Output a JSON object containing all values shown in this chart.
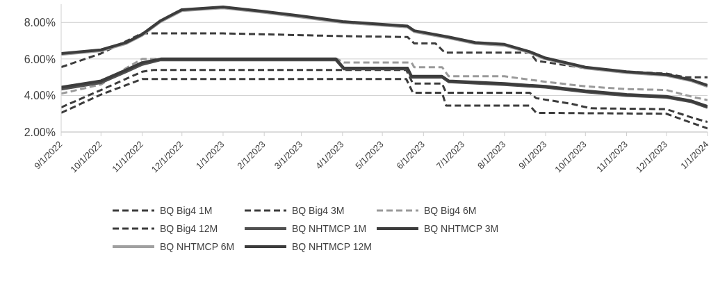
{
  "chart_data": {
    "type": "line",
    "xlim": [
      "2022-09-01",
      "2024-01-01"
    ],
    "xticks": [
      {
        "value": "2022-09-01",
        "label": "9/1/2022"
      },
      {
        "value": "2022-10-01",
        "label": "10/1/2022"
      },
      {
        "value": "2022-11-01",
        "label": "11/1/2022"
      },
      {
        "value": "2022-12-01",
        "label": "12/1/2022"
      },
      {
        "value": "2023-01-01",
        "label": "1/1/2023"
      },
      {
        "value": "2023-02-01",
        "label": "2/1/2023"
      },
      {
        "value": "2023-03-01",
        "label": "3/1/2023"
      },
      {
        "value": "2023-04-01",
        "label": "4/1/2023"
      },
      {
        "value": "2023-05-01",
        "label": "5/1/2023"
      },
      {
        "value": "2023-06-01",
        "label": "6/1/2023"
      },
      {
        "value": "2023-07-01",
        "label": "7/1/2023"
      },
      {
        "value": "2023-08-01",
        "label": "8/1/2023"
      },
      {
        "value": "2023-09-01",
        "label": "9/1/2023"
      },
      {
        "value": "2023-10-01",
        "label": "10/1/2023"
      },
      {
        "value": "2023-11-01",
        "label": "11/1/2023"
      },
      {
        "value": "2023-12-01",
        "label": "12/1/2023"
      },
      {
        "value": "2024-01-01",
        "label": "1/1/2024"
      }
    ],
    "ylim": [
      2,
      9
    ],
    "yticks": [
      {
        "value": 2,
        "label": "2.00%"
      },
      {
        "value": 4,
        "label": "4.00%"
      },
      {
        "value": 6,
        "label": "6.00%"
      },
      {
        "value": 8,
        "label": "8.00%"
      }
    ],
    "grid": "y",
    "legend": "bottom",
    "marker": "none",
    "series": [
      {
        "name": "BQ Big4 1M",
        "color": "#3c3c3c",
        "line_style": "dashed",
        "x": [
          "2022-09-01",
          "2022-10-01",
          "2022-11-01",
          "2023-05-19",
          "2023-05-24",
          "2023-06-15",
          "2023-06-18",
          "2023-08-20",
          "2023-08-25",
          "2023-12-01",
          "2023-12-22",
          "2024-01-01"
        ],
        "values": [
          3.05,
          4.05,
          4.9,
          4.9,
          4.15,
          4.15,
          3.45,
          3.45,
          3.05,
          3.0,
          2.45,
          2.2
        ]
      },
      {
        "name": "BQ Big4 3M",
        "color": "#3c3c3c",
        "line_style": "dashed",
        "x": [
          "2022-09-01",
          "2022-10-01",
          "2022-11-01",
          "2022-11-10",
          "2023-05-19",
          "2023-05-24",
          "2023-06-15",
          "2023-06-18",
          "2023-08-20",
          "2023-08-25",
          "2023-09-20",
          "2023-10-05",
          "2023-12-01",
          "2023-12-22",
          "2024-01-01"
        ],
        "values": [
          3.35,
          4.3,
          5.3,
          5.4,
          5.4,
          4.65,
          4.65,
          4.15,
          4.15,
          3.85,
          3.55,
          3.3,
          3.25,
          2.75,
          2.55
        ]
      },
      {
        "name": "BQ Big4 6M",
        "color": "#9a9a9a",
        "line_style": "dashed",
        "x": [
          "2022-09-01",
          "2022-10-01",
          "2022-10-20",
          "2022-11-01",
          "2023-03-28",
          "2023-04-02",
          "2023-05-23",
          "2023-05-25",
          "2023-06-15",
          "2023-06-20",
          "2023-08-01",
          "2023-09-01",
          "2023-10-01",
          "2023-11-01",
          "2023-12-01",
          "2023-12-22",
          "2024-01-01"
        ],
        "values": [
          4.1,
          4.6,
          5.5,
          6.0,
          6.0,
          5.8,
          5.8,
          5.55,
          5.55,
          5.05,
          5.05,
          4.75,
          4.5,
          4.35,
          4.3,
          3.9,
          3.75
        ]
      },
      {
        "name": "BQ Big4 12M",
        "color": "#3c3c3c",
        "line_style": "dashed",
        "x": [
          "2022-09-01",
          "2022-10-01",
          "2022-11-01",
          "2023-01-01",
          "2023-04-01",
          "2023-05-20",
          "2023-05-25",
          "2023-06-10",
          "2023-06-17",
          "2023-08-20",
          "2023-08-25",
          "2023-10-01",
          "2023-11-01",
          "2023-12-01",
          "2023-12-15",
          "2024-01-01"
        ],
        "values": [
          5.55,
          6.3,
          7.4,
          7.4,
          7.25,
          7.2,
          6.85,
          6.85,
          6.35,
          6.35,
          5.9,
          5.5,
          5.3,
          5.2,
          5.0,
          5.0
        ]
      },
      {
        "name": "BQ NHTMCP 1M",
        "color": "#505050",
        "line_style": "solid",
        "x": [
          "2022-09-01",
          "2022-10-01",
          "2022-10-20",
          "2022-11-01",
          "2022-11-15",
          "2023-03-27",
          "2023-04-02",
          "2023-05-20",
          "2023-05-23",
          "2023-06-15",
          "2023-06-20",
          "2023-08-01",
          "2023-09-01",
          "2023-10-01",
          "2023-11-01",
          "2023-12-01",
          "2023-12-20",
          "2024-01-01"
        ],
        "values": [
          4.35,
          4.7,
          5.3,
          5.7,
          5.95,
          5.95,
          5.45,
          5.45,
          5.0,
          5.0,
          4.75,
          4.6,
          4.45,
          4.2,
          4.0,
          3.9,
          3.65,
          3.35
        ]
      },
      {
        "name": "BQ NHTMCP 3M",
        "color": "#3c3c3c",
        "line_style": "solid",
        "x": [
          "2022-09-01",
          "2022-10-01",
          "2022-10-20",
          "2022-11-01",
          "2022-11-15",
          "2023-03-27",
          "2023-04-02",
          "2023-05-20",
          "2023-05-23",
          "2023-06-15",
          "2023-06-20",
          "2023-08-01",
          "2023-09-01",
          "2023-10-01",
          "2023-11-01",
          "2023-12-01",
          "2023-12-20",
          "2024-01-01"
        ],
        "values": [
          4.45,
          4.8,
          5.4,
          5.8,
          6.0,
          6.0,
          5.5,
          5.5,
          5.05,
          5.05,
          4.8,
          4.65,
          4.5,
          4.25,
          4.05,
          3.95,
          3.7,
          3.4
        ]
      },
      {
        "name": "BQ NHTMCP 6M",
        "color": "#a0a0a0",
        "line_style": "solid",
        "x": [
          "2022-09-01",
          "2022-10-01",
          "2022-10-20",
          "2022-11-01",
          "2022-11-15",
          "2022-12-01",
          "2023-01-01",
          "2023-02-01",
          "2023-03-01",
          "2023-04-01",
          "2023-05-01",
          "2023-05-20",
          "2023-05-25",
          "2023-06-20",
          "2023-07-10",
          "2023-08-01",
          "2023-08-20",
          "2023-09-01",
          "2023-10-01",
          "2023-11-01",
          "2023-12-01",
          "2023-12-20",
          "2024-01-01"
        ],
        "values": [
          6.25,
          6.45,
          6.85,
          7.3,
          8.05,
          8.65,
          8.8,
          8.55,
          8.3,
          8.0,
          7.85,
          7.75,
          7.5,
          7.15,
          6.85,
          6.75,
          6.35,
          6.0,
          5.5,
          5.25,
          5.1,
          4.8,
          4.5
        ]
      },
      {
        "name": "BQ NHTMCP 12M",
        "color": "#3c3c3c",
        "line_style": "solid",
        "x": [
          "2022-09-01",
          "2022-10-01",
          "2022-10-20",
          "2022-11-01",
          "2022-11-15",
          "2022-12-01",
          "2023-01-01",
          "2023-02-01",
          "2023-03-01",
          "2023-04-01",
          "2023-05-01",
          "2023-05-20",
          "2023-05-25",
          "2023-06-20",
          "2023-07-10",
          "2023-08-01",
          "2023-08-20",
          "2023-09-01",
          "2023-10-01",
          "2023-11-01",
          "2023-12-01",
          "2023-12-20",
          "2024-01-01"
        ],
        "values": [
          6.3,
          6.5,
          6.9,
          7.35,
          8.1,
          8.7,
          8.85,
          8.6,
          8.35,
          8.05,
          7.9,
          7.8,
          7.55,
          7.2,
          6.9,
          6.8,
          6.4,
          6.05,
          5.55,
          5.3,
          5.15,
          4.85,
          4.55
        ]
      }
    ]
  }
}
